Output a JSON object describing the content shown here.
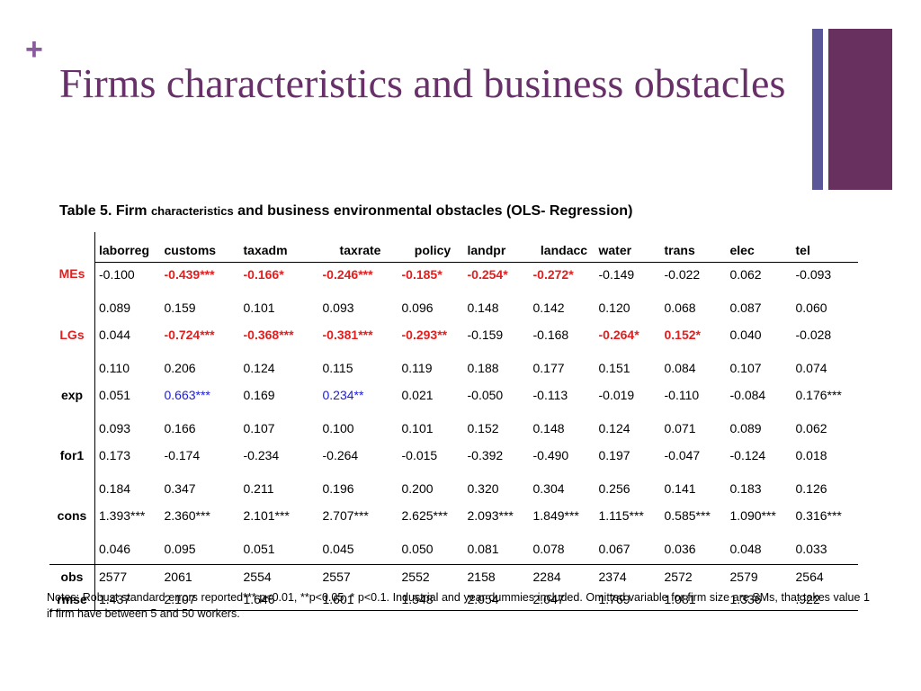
{
  "slide": {
    "title": "Firms characteristics and business obstacles",
    "plus_glyph": "+",
    "accent_colors": {
      "title": "#673068",
      "bar_thin": "#5b5697",
      "bar_thick": "#67305f",
      "plus": "#8a5a9c",
      "significant_red": "#e02020",
      "significant_blue": "#1a1ae0"
    }
  },
  "table": {
    "caption_pre": "Table 5. Firm ",
    "caption_small": "characteristics",
    "caption_post": " and business environmental obstacles (OLS- Regression)",
    "columns": [
      "laborreg",
      "customs",
      "taxadm",
      "taxrate",
      "policy",
      "landpr",
      "landacc",
      "water",
      "trans",
      "elec",
      "tel"
    ],
    "rows": [
      {
        "label": "MEs",
        "label_style": "red",
        "coef": [
          {
            "v": "-0.100",
            "s": ""
          },
          {
            "v": "-0.439***",
            "s": "red"
          },
          {
            "v": "-0.166*",
            "s": "red"
          },
          {
            "v": "-0.246***",
            "s": "red"
          },
          {
            "v": "-0.185*",
            "s": "red"
          },
          {
            "v": "-0.254*",
            "s": "red"
          },
          {
            "v": "-0.272*",
            "s": "red"
          },
          {
            "v": "-0.149",
            "s": ""
          },
          {
            "v": "-0.022",
            "s": ""
          },
          {
            "v": "0.062",
            "s": ""
          },
          {
            "v": "-0.093",
            "s": ""
          }
        ],
        "se": [
          "0.089",
          "0.159",
          "0.101",
          "0.093",
          "0.096",
          "0.148",
          "0.142",
          "0.120",
          "0.068",
          "0.087",
          "0.060"
        ]
      },
      {
        "label": "LGs",
        "label_style": "red",
        "coef": [
          {
            "v": "0.044",
            "s": ""
          },
          {
            "v": "-0.724***",
            "s": "red"
          },
          {
            "v": "-0.368***",
            "s": "red"
          },
          {
            "v": "-0.381***",
            "s": "red"
          },
          {
            "v": "-0.293**",
            "s": "red"
          },
          {
            "v": "-0.159",
            "s": ""
          },
          {
            "v": "-0.168",
            "s": ""
          },
          {
            "v": "-0.264*",
            "s": "red"
          },
          {
            "v": "0.152*",
            "s": "red"
          },
          {
            "v": "0.040",
            "s": ""
          },
          {
            "v": "-0.028",
            "s": ""
          }
        ],
        "se": [
          "0.110",
          "0.206",
          "0.124",
          "0.115",
          "0.119",
          "0.188",
          "0.177",
          "0.151",
          "0.084",
          "0.107",
          "0.074"
        ]
      },
      {
        "label": "exp",
        "label_style": "",
        "coef": [
          {
            "v": "0.051",
            "s": ""
          },
          {
            "v": "0.663***",
            "s": "blue"
          },
          {
            "v": "0.169",
            "s": ""
          },
          {
            "v": "0.234**",
            "s": "blue"
          },
          {
            "v": "0.021",
            "s": ""
          },
          {
            "v": "-0.050",
            "s": ""
          },
          {
            "v": "-0.113",
            "s": ""
          },
          {
            "v": "-0.019",
            "s": ""
          },
          {
            "v": "-0.110",
            "s": ""
          },
          {
            "v": "-0.084",
            "s": ""
          },
          {
            "v": "0.176***",
            "s": ""
          }
        ],
        "se": [
          "0.093",
          "0.166",
          "0.107",
          "0.100",
          "0.101",
          "0.152",
          "0.148",
          "0.124",
          "0.071",
          "0.089",
          "0.062"
        ]
      },
      {
        "label": "for1",
        "label_style": "",
        "coef": [
          {
            "v": "0.173",
            "s": ""
          },
          {
            "v": "-0.174",
            "s": ""
          },
          {
            "v": "-0.234",
            "s": ""
          },
          {
            "v": "-0.264",
            "s": ""
          },
          {
            "v": "-0.015",
            "s": ""
          },
          {
            "v": "-0.392",
            "s": ""
          },
          {
            "v": "-0.490",
            "s": ""
          },
          {
            "v": "0.197",
            "s": ""
          },
          {
            "v": "-0.047",
            "s": ""
          },
          {
            "v": "-0.124",
            "s": ""
          },
          {
            "v": "0.018",
            "s": ""
          }
        ],
        "se": [
          "0.184",
          "0.347",
          "0.211",
          "0.196",
          "0.200",
          "0.320",
          "0.304",
          "0.256",
          "0.141",
          "0.183",
          "0.126"
        ]
      },
      {
        "label": "cons",
        "label_style": "",
        "coef": [
          {
            "v": "1.393***",
            "s": ""
          },
          {
            "v": "2.360***",
            "s": ""
          },
          {
            "v": "2.101***",
            "s": ""
          },
          {
            "v": "2.707***",
            "s": ""
          },
          {
            "v": "2.625***",
            "s": ""
          },
          {
            "v": "2.093***",
            "s": ""
          },
          {
            "v": "1.849***",
            "s": ""
          },
          {
            "v": "1.115***",
            "s": ""
          },
          {
            "v": "0.585***",
            "s": ""
          },
          {
            "v": "1.090***",
            "s": ""
          },
          {
            "v": "0.316***",
            "s": ""
          }
        ],
        "se": [
          "0.046",
          "0.095",
          "0.051",
          "0.045",
          "0.050",
          "0.081",
          "0.078",
          "0.067",
          "0.036",
          "0.048",
          "0.033"
        ]
      }
    ],
    "obs": {
      "label": "obs",
      "values": [
        "2577",
        "2061",
        "2554",
        "2557",
        "2552",
        "2158",
        "2284",
        "2374",
        "2572",
        "2579",
        "2564"
      ]
    },
    "rmse": {
      "label": "rmse",
      "values": [
        "1.437",
        "2.107",
        "1.646",
        "1.601",
        "1.548",
        "2.054",
        "2.047",
        "1.769",
        "1.081",
        "1.336",
        ".922"
      ]
    }
  },
  "notes": "Notes: Robust standard errors reported*** p<0.01, **p<0.05, * p<0.1. Industrial and year dummies included.  Omitted variable for firm size are SMs, that takes value 1 if firm have between 5 and 50 workers."
}
